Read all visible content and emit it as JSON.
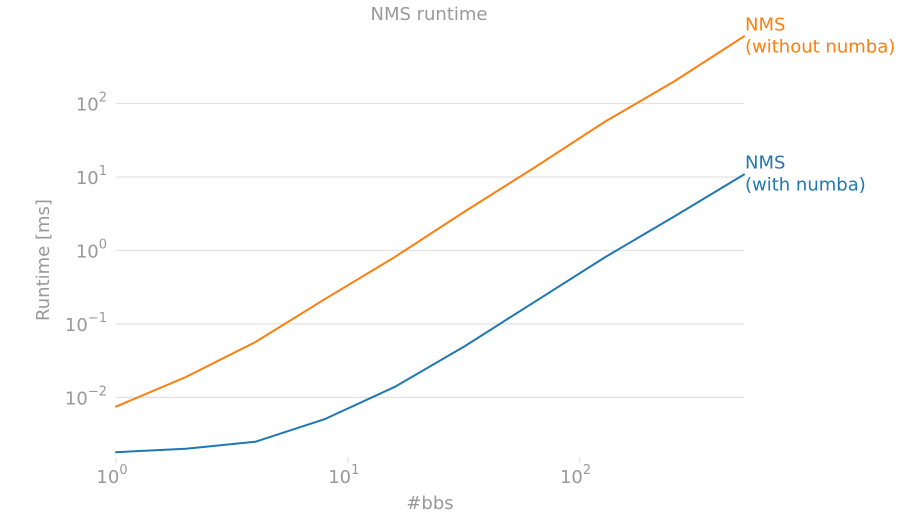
{
  "chart_data": {
    "type": "line",
    "title": "NMS runtime",
    "xlabel": "#bbs",
    "ylabel": "Runtime [ms]",
    "xscale": "log",
    "yscale": "log",
    "xlim": [
      1,
      512
    ],
    "ylim": [
      0.0015,
      1000
    ],
    "x": [
      1,
      2,
      4,
      8,
      16,
      32,
      64,
      128,
      256,
      512
    ],
    "series": [
      {
        "name": "NMS (without numba)",
        "label_lines": [
          "NMS",
          "(without numba)"
        ],
        "color": "#ff7f0e",
        "values": [
          0.0075,
          0.019,
          0.057,
          0.22,
          0.82,
          3.4,
          13.5,
          56,
          200,
          820
        ]
      },
      {
        "name": "NMS (with numba)",
        "label_lines": [
          "NMS",
          "(with numba)"
        ],
        "color": "#1f77b4",
        "values": [
          0.0018,
          0.002,
          0.0025,
          0.0051,
          0.014,
          0.05,
          0.2,
          0.8,
          2.9,
          10.8
        ]
      }
    ],
    "x_ticks": [
      {
        "value": 1,
        "base": "10",
        "exp": "0"
      },
      {
        "value": 10,
        "base": "10",
        "exp": "1"
      },
      {
        "value": 100,
        "base": "10",
        "exp": "2"
      }
    ],
    "y_ticks": [
      {
        "value": 0.01,
        "base": "10",
        "exp": "−2"
      },
      {
        "value": 0.1,
        "base": "10",
        "exp": "−1"
      },
      {
        "value": 1,
        "base": "10",
        "exp": "0"
      },
      {
        "value": 10,
        "base": "10",
        "exp": "1"
      },
      {
        "value": 100,
        "base": "10",
        "exp": "2"
      }
    ],
    "grid": "horizontal",
    "legend": "inline-at-line-end"
  }
}
